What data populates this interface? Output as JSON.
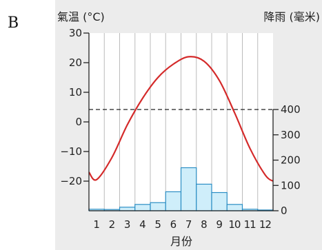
{
  "panel_label": "B",
  "top_cut_text": "月份",
  "chart_data": {
    "type": "bar+line",
    "x_label": "月份",
    "categories": [
      "1",
      "2",
      "3",
      "4",
      "5",
      "6",
      "7",
      "8",
      "9",
      "10",
      "11",
      "12"
    ],
    "temperature": {
      "axis_title": "氣温 (°C)",
      "unit": "°C",
      "values": [
        -19.5,
        -12,
        -1,
        8,
        15,
        19.5,
        22,
        20.5,
        14,
        3,
        -9,
        -18
      ],
      "ylim": [
        -30,
        30
      ],
      "ticks": [
        "30",
        "20",
        "10",
        "0",
        "−10",
        "−20"
      ],
      "tick_values": [
        30,
        20,
        10,
        0,
        -10,
        -20
      ],
      "color": "#d42a2a"
    },
    "precipitation": {
      "axis_title": "降雨 (毫米)",
      "unit": "毫米",
      "values": [
        6,
        5,
        14,
        25,
        32,
        75,
        170,
        105,
        72,
        25,
        6,
        3
      ],
      "ylim": [
        0,
        400
      ],
      "ticks": [
        "400",
        "300",
        "200",
        "100",
        "0"
      ],
      "tick_values": [
        400,
        300,
        200,
        100,
        0
      ],
      "bar_fill": "#cfeefa",
      "bar_stroke": "#2b8ec4"
    },
    "zero_line": "dashed",
    "grid": "vertical",
    "plot_bg": "#ececec"
  }
}
